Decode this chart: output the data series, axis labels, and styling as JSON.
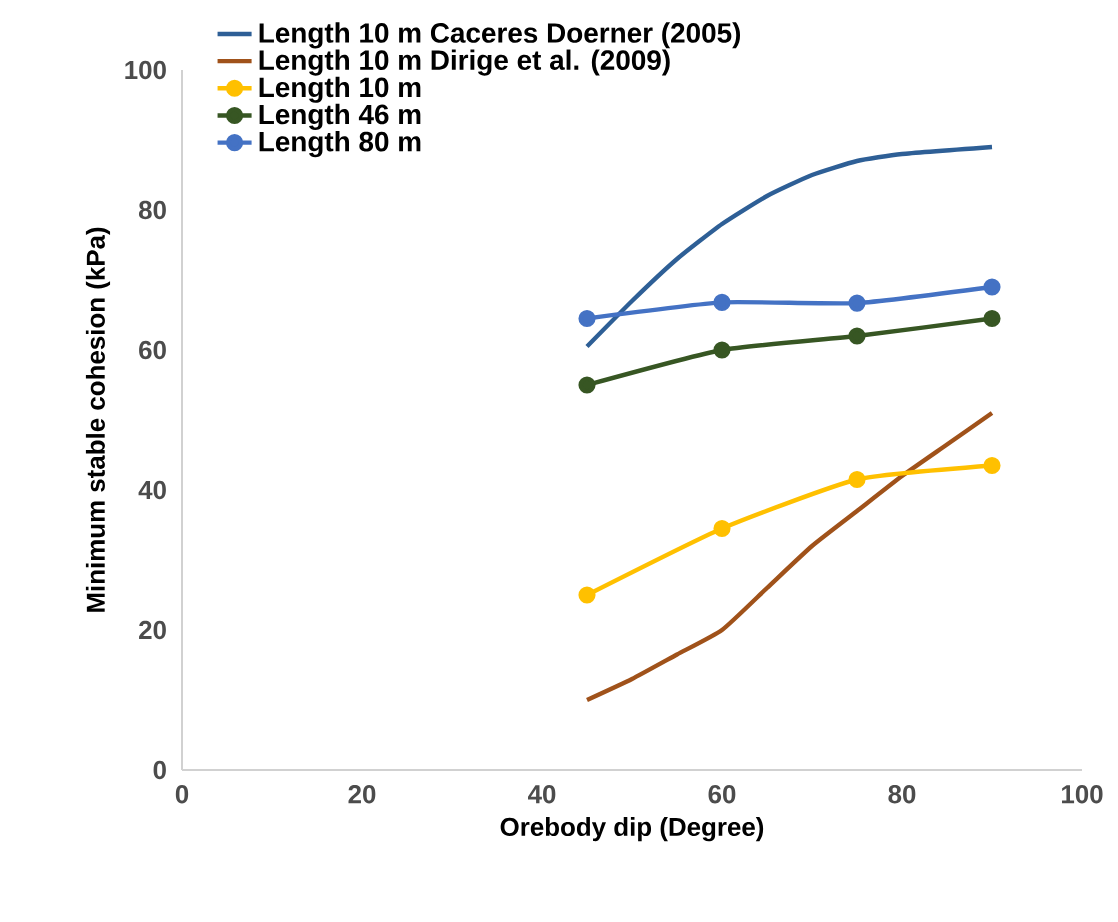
{
  "chart_data": {
    "type": "line",
    "xlabel": "Orebody dip (Degree)",
    "ylabel": "Minimum stable cohesion (kPa)",
    "xlim": [
      0,
      100
    ],
    "ylim": [
      0,
      100
    ],
    "xticks": [
      0,
      20,
      40,
      60,
      80,
      100
    ],
    "yticks": [
      0,
      20,
      40,
      60,
      80,
      100
    ],
    "grid": false,
    "legend": "top left",
    "series": [
      {
        "name": "Length 10 m Caceres Doerner (2005)",
        "color": "#2e5f96",
        "marker": "none",
        "x": [
          45,
          50,
          55,
          60,
          65,
          70,
          75,
          80,
          90
        ],
        "values": [
          60.5,
          67,
          73,
          78,
          82,
          85,
          87,
          88,
          89
        ]
      },
      {
        "name": "Length 10 m Dirige et al. (2009)",
        "color": "#a0521a",
        "marker": "none",
        "x": [
          45,
          50,
          55,
          60,
          65,
          70,
          75,
          80,
          85,
          90
        ],
        "values": [
          10,
          13,
          16.5,
          20,
          26,
          32,
          37,
          42,
          46.5,
          51
        ]
      },
      {
        "name": "Length 10 m",
        "color": "#ffc000",
        "marker": "circle",
        "x": [
          45,
          60,
          75,
          90
        ],
        "values": [
          25,
          34.5,
          41.5,
          43.5
        ]
      },
      {
        "name": "Length 46 m",
        "color": "#375623",
        "marker": "circle",
        "x": [
          45,
          60,
          75,
          90
        ],
        "values": [
          55,
          60,
          62,
          64.5
        ]
      },
      {
        "name": "Length 80 m",
        "color": "#4472c4",
        "marker": "circle",
        "x": [
          45,
          60,
          75,
          90
        ],
        "values": [
          64.5,
          66.8,
          66.7,
          69
        ]
      }
    ]
  }
}
